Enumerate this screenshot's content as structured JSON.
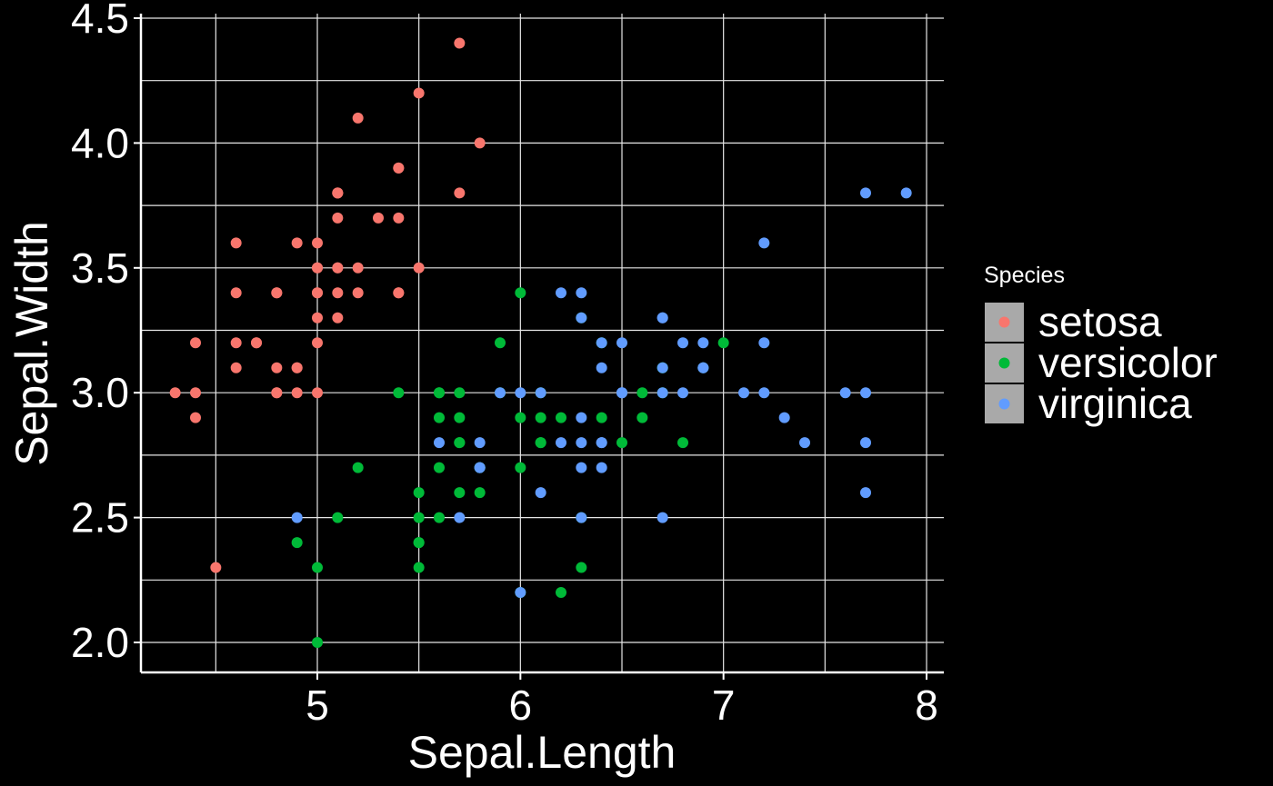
{
  "chart_data": {
    "type": "scatter",
    "xlabel": "Sepal.Length",
    "ylabel": "Sepal.Width",
    "xlim": [
      4.2,
      8.1
    ],
    "ylim": [
      1.88,
      4.5
    ],
    "x_ticks": [
      5,
      6,
      7,
      8
    ],
    "x_tick_labels": [
      "5",
      "6",
      "7",
      "8"
    ],
    "y_ticks": [
      2.0,
      2.5,
      3.0,
      3.5,
      4.0,
      4.5
    ],
    "y_tick_labels": [
      "2.0",
      "2.5",
      "3.0",
      "3.5",
      "4.0",
      "4.5"
    ],
    "x_minor_grid": [
      4.5,
      5.5,
      6.5,
      7.5
    ],
    "y_minor_grid": [
      2.25,
      2.75,
      3.25,
      3.75,
      4.25
    ],
    "grid": true,
    "legend": {
      "title": "Species",
      "placement": "right",
      "key_background": "#a9a9a9"
    },
    "series": [
      {
        "name": "setosa",
        "color": "#F8766D",
        "points": [
          [
            5.1,
            3.5
          ],
          [
            4.9,
            3.0
          ],
          [
            4.7,
            3.2
          ],
          [
            4.6,
            3.1
          ],
          [
            5.0,
            3.6
          ],
          [
            5.4,
            3.9
          ],
          [
            4.6,
            3.4
          ],
          [
            5.0,
            3.4
          ],
          [
            4.4,
            2.9
          ],
          [
            4.9,
            3.1
          ],
          [
            5.4,
            3.7
          ],
          [
            4.8,
            3.4
          ],
          [
            4.8,
            3.0
          ],
          [
            4.3,
            3.0
          ],
          [
            5.8,
            4.0
          ],
          [
            5.7,
            4.4
          ],
          [
            5.4,
            3.9
          ],
          [
            5.1,
            3.5
          ],
          [
            5.7,
            3.8
          ],
          [
            5.1,
            3.8
          ],
          [
            5.4,
            3.4
          ],
          [
            5.1,
            3.7
          ],
          [
            4.6,
            3.6
          ],
          [
            5.1,
            3.3
          ],
          [
            4.8,
            3.4
          ],
          [
            5.0,
            3.0
          ],
          [
            5.0,
            3.4
          ],
          [
            5.2,
            3.5
          ],
          [
            5.2,
            3.4
          ],
          [
            4.7,
            3.2
          ],
          [
            4.8,
            3.1
          ],
          [
            5.4,
            3.4
          ],
          [
            5.2,
            4.1
          ],
          [
            5.5,
            4.2
          ],
          [
            4.9,
            3.1
          ],
          [
            5.0,
            3.2
          ],
          [
            5.5,
            3.5
          ],
          [
            4.9,
            3.6
          ],
          [
            4.4,
            3.0
          ],
          [
            5.1,
            3.4
          ],
          [
            5.0,
            3.5
          ],
          [
            4.5,
            2.3
          ],
          [
            4.4,
            3.2
          ],
          [
            5.0,
            3.5
          ],
          [
            5.1,
            3.8
          ],
          [
            4.8,
            3.0
          ],
          [
            5.1,
            3.8
          ],
          [
            4.6,
            3.2
          ],
          [
            5.3,
            3.7
          ],
          [
            5.0,
            3.3
          ]
        ]
      },
      {
        "name": "versicolor",
        "color": "#00BA38",
        "points": [
          [
            7.0,
            3.2
          ],
          [
            6.4,
            3.2
          ],
          [
            6.9,
            3.1
          ],
          [
            5.5,
            2.3
          ],
          [
            6.5,
            2.8
          ],
          [
            5.7,
            2.8
          ],
          [
            6.3,
            3.3
          ],
          [
            4.9,
            2.4
          ],
          [
            6.6,
            2.9
          ],
          [
            5.2,
            2.7
          ],
          [
            5.0,
            2.0
          ],
          [
            5.9,
            3.0
          ],
          [
            6.0,
            2.2
          ],
          [
            6.1,
            2.9
          ],
          [
            5.6,
            2.9
          ],
          [
            6.7,
            3.1
          ],
          [
            5.6,
            3.0
          ],
          [
            5.8,
            2.7
          ],
          [
            6.2,
            2.2
          ],
          [
            5.6,
            2.5
          ],
          [
            5.9,
            3.2
          ],
          [
            6.1,
            2.8
          ],
          [
            6.3,
            2.5
          ],
          [
            6.1,
            2.8
          ],
          [
            6.4,
            2.9
          ],
          [
            6.6,
            3.0
          ],
          [
            6.8,
            2.8
          ],
          [
            6.7,
            3.0
          ],
          [
            6.0,
            2.9
          ],
          [
            5.7,
            2.6
          ],
          [
            5.5,
            2.4
          ],
          [
            5.5,
            2.4
          ],
          [
            5.8,
            2.7
          ],
          [
            6.0,
            2.7
          ],
          [
            5.4,
            3.0
          ],
          [
            6.0,
            3.4
          ],
          [
            6.7,
            3.1
          ],
          [
            6.3,
            2.3
          ],
          [
            5.6,
            3.0
          ],
          [
            5.5,
            2.5
          ],
          [
            5.5,
            2.6
          ],
          [
            6.1,
            3.0
          ],
          [
            5.8,
            2.6
          ],
          [
            5.0,
            2.3
          ],
          [
            5.6,
            2.7
          ],
          [
            5.7,
            3.0
          ],
          [
            5.7,
            2.9
          ],
          [
            6.2,
            2.9
          ],
          [
            5.1,
            2.5
          ],
          [
            5.7,
            2.8
          ]
        ]
      },
      {
        "name": "virginica",
        "color": "#619CFF",
        "points": [
          [
            6.3,
            3.3
          ],
          [
            5.8,
            2.7
          ],
          [
            7.1,
            3.0
          ],
          [
            6.3,
            2.9
          ],
          [
            6.5,
            3.0
          ],
          [
            7.6,
            3.0
          ],
          [
            4.9,
            2.5
          ],
          [
            7.3,
            2.9
          ],
          [
            6.7,
            2.5
          ],
          [
            7.2,
            3.6
          ],
          [
            6.5,
            3.2
          ],
          [
            6.4,
            2.7
          ],
          [
            6.8,
            3.0
          ],
          [
            5.7,
            2.5
          ],
          [
            5.8,
            2.8
          ],
          [
            6.4,
            3.2
          ],
          [
            6.5,
            3.0
          ],
          [
            7.7,
            3.8
          ],
          [
            7.7,
            2.6
          ],
          [
            6.0,
            2.2
          ],
          [
            6.9,
            3.2
          ],
          [
            5.6,
            2.8
          ],
          [
            7.7,
            2.8
          ],
          [
            6.3,
            2.7
          ],
          [
            6.7,
            3.3
          ],
          [
            7.2,
            3.2
          ],
          [
            6.2,
            2.8
          ],
          [
            6.1,
            3.0
          ],
          [
            6.4,
            2.8
          ],
          [
            7.2,
            3.0
          ],
          [
            7.4,
            2.8
          ],
          [
            7.9,
            3.8
          ],
          [
            6.4,
            2.8
          ],
          [
            6.3,
            2.8
          ],
          [
            6.1,
            2.6
          ],
          [
            7.7,
            3.0
          ],
          [
            6.3,
            3.4
          ],
          [
            6.4,
            3.1
          ],
          [
            6.0,
            3.0
          ],
          [
            6.9,
            3.1
          ],
          [
            6.7,
            3.1
          ],
          [
            6.9,
            3.1
          ],
          [
            5.8,
            2.7
          ],
          [
            6.8,
            3.2
          ],
          [
            6.7,
            3.3
          ],
          [
            6.7,
            3.0
          ],
          [
            6.3,
            2.5
          ],
          [
            6.5,
            3.0
          ],
          [
            6.2,
            3.4
          ],
          [
            5.9,
            3.0
          ]
        ]
      }
    ]
  }
}
